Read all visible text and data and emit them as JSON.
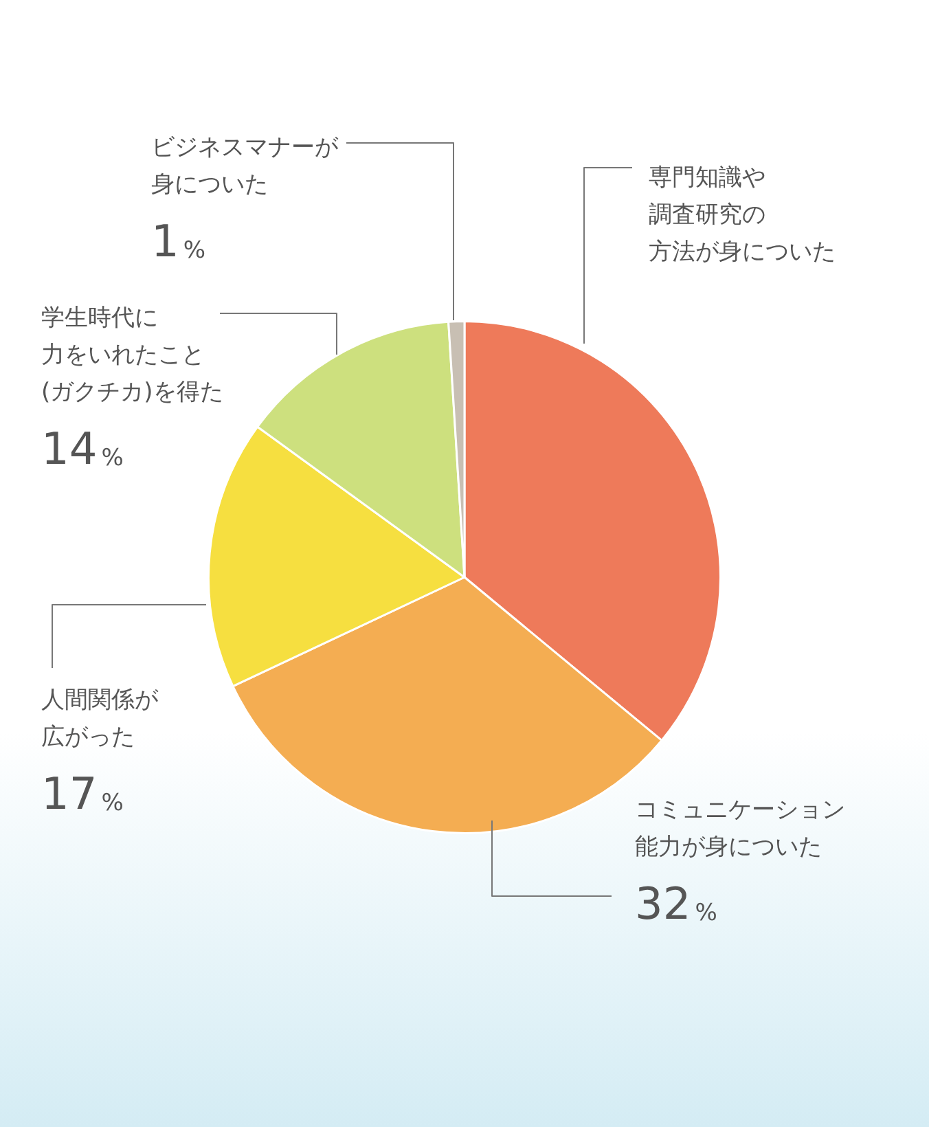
{
  "chart_data": {
    "type": "pie",
    "categories": [
      "専門知識や調査研究の方法が身についた",
      "コミュニケーション能力が身についた",
      "人間関係が広がった",
      "学生時代に力をいれたこと(ガクチカ)を得た",
      "ビジネスマナーが身についた"
    ],
    "values": [
      36,
      32,
      17,
      14,
      1
    ],
    "colors": [
      "#ee7a5a",
      "#f4ad52",
      "#f6df40",
      "#cde07e",
      "#c8bfb3"
    ],
    "value_labels": [
      null,
      "32%",
      "17%",
      "14%",
      "1%"
    ]
  }
}
